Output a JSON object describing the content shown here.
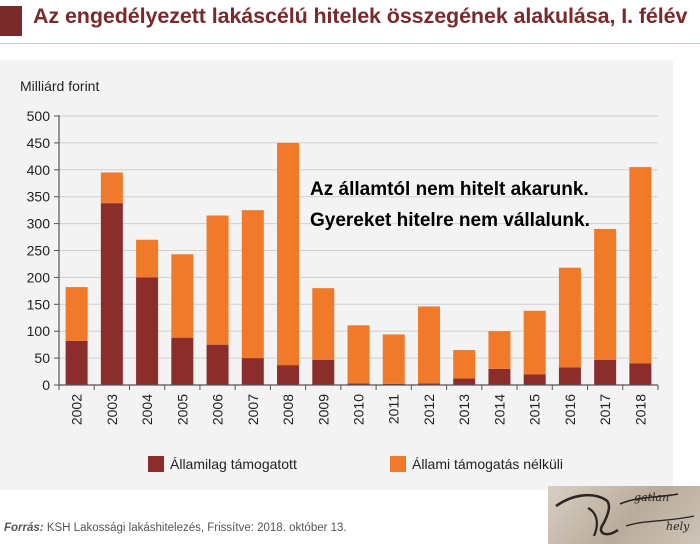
{
  "header": {
    "title": "Az engedélyezett lakáscélú hitelek összegének alakulása, I. félév"
  },
  "chart_data": {
    "type": "bar",
    "stacked": true,
    "ylabel": "Milliárd forint",
    "ylim": [
      0,
      500
    ],
    "yticks": [
      0,
      50,
      100,
      150,
      200,
      250,
      300,
      350,
      400,
      450,
      500
    ],
    "grid": true,
    "legend_position": "bottom",
    "categories": [
      "2002",
      "2003",
      "2004",
      "2005",
      "2006",
      "2007",
      "2008",
      "2009",
      "2010",
      "2011",
      "2012",
      "2013",
      "2014",
      "2015",
      "2016",
      "2017",
      "2018"
    ],
    "series": [
      {
        "name": "Államilag támogatott",
        "color": "#8b2e2b",
        "values": [
          82,
          338,
          200,
          88,
          75,
          50,
          37,
          47,
          3,
          2,
          3,
          12,
          30,
          20,
          33,
          47,
          40
        ]
      },
      {
        "name": "Állami támogatás nélküli",
        "color": "#f07a2a",
        "values": [
          100,
          57,
          70,
          155,
          240,
          275,
          413,
          133,
          108,
          92,
          143,
          53,
          70,
          118,
          185,
          243,
          365
        ]
      }
    ],
    "annotation": [
      "Az államtól nem hitelt akarunk.",
      "Gyereket hitelre nem vállalunk."
    ]
  },
  "footer": {
    "source_label": "Forrás:",
    "source_text": "KSH Lakossági lakáshitelezés, Frissítve: 2018. október 13."
  },
  "logo": {
    "text": "Ingatlan Műhely"
  }
}
